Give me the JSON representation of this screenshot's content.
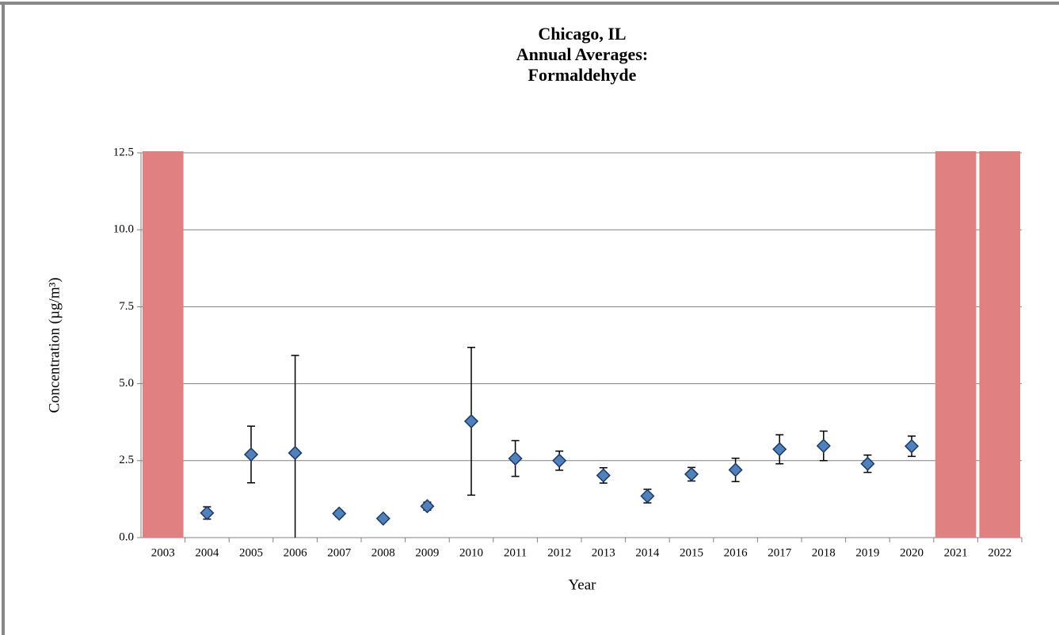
{
  "chart_data": {
    "type": "errorbar",
    "title": [
      "Chicago, IL",
      "Annual Averages:",
      "Formaldehyde"
    ],
    "xlabel": "Year",
    "ylabel": "Concentration (µg/m³)",
    "categories": [
      "2003",
      "2004",
      "2005",
      "2006",
      "2007",
      "2008",
      "2009",
      "2010",
      "2011",
      "2012",
      "2013",
      "2014",
      "2015",
      "2016",
      "2017",
      "2018",
      "2019",
      "2020",
      "2021",
      "2022"
    ],
    "values": [
      null,
      0.8,
      2.7,
      2.75,
      0.78,
      0.62,
      1.02,
      3.78,
      2.57,
      2.5,
      2.02,
      1.35,
      2.06,
      2.2,
      2.87,
      2.98,
      2.4,
      2.97,
      null,
      null
    ],
    "errors": [
      null,
      0.2,
      0.92,
      3.17,
      0.1,
      0.07,
      0.13,
      2.4,
      0.58,
      0.31,
      0.25,
      0.22,
      0.22,
      0.38,
      0.47,
      0.48,
      0.28,
      0.33,
      null,
      null
    ],
    "color": "#4f81bd",
    "bars": {
      "color": "#e08080",
      "values": [
        12.5,
        null,
        null,
        null,
        null,
        null,
        null,
        null,
        null,
        null,
        null,
        null,
        null,
        null,
        null,
        null,
        null,
        null,
        12.5,
        12.5
      ]
    },
    "ylim": [
      0,
      12.5
    ],
    "yticks": [
      {
        "value": 0,
        "label": "0.0"
      },
      {
        "value": 2.5,
        "label": "2.5"
      },
      {
        "value": 5,
        "label": "5.0"
      },
      {
        "value": 7.5,
        "label": "7.5"
      },
      {
        "value": 10,
        "label": "10.0"
      },
      {
        "value": 12.5,
        "label": "12.5"
      }
    ],
    "grid": true
  }
}
